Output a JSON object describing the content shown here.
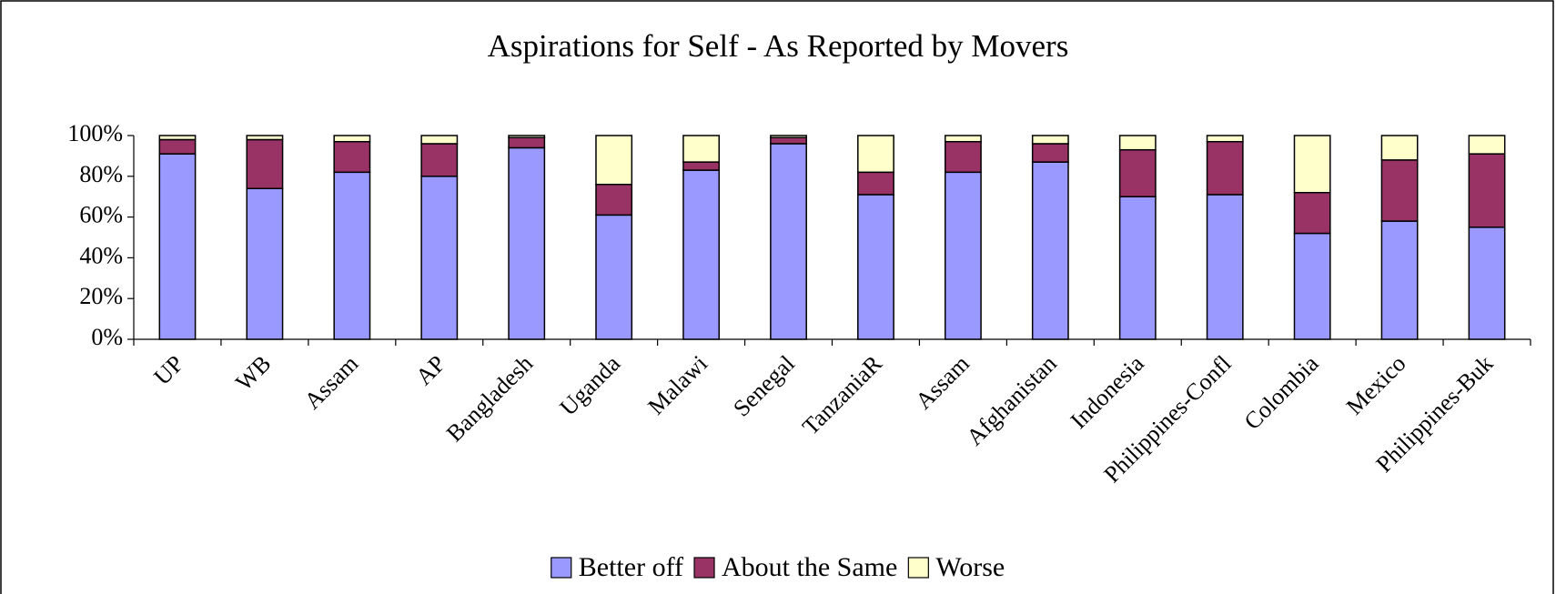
{
  "chart_data": {
    "type": "stacked_bar",
    "title": "Aspirations for Self - As Reported by Movers",
    "categories": [
      "UP",
      "WB",
      "Assam",
      "AP",
      "Bangladesh",
      "Uganda",
      "Malawi",
      "Senegal",
      "TanzaniaR",
      "Assam",
      "Afghanistan",
      "Indonesia",
      "Philippines-Confl",
      "Colombia",
      "Mexico",
      "Philippines-Buk"
    ],
    "series": [
      {
        "name": "Better off",
        "color": "#9999ff",
        "values": [
          91,
          74,
          82,
          80,
          94,
          61,
          83,
          96,
          71,
          82,
          87,
          70,
          71,
          52,
          58,
          55
        ]
      },
      {
        "name": "About the Same",
        "color": "#993366",
        "values": [
          7,
          24,
          15,
          16,
          5,
          15,
          4,
          3,
          11,
          15,
          9,
          23,
          26,
          20,
          30,
          36
        ]
      },
      {
        "name": "Worse",
        "color": "#ffffcc",
        "values": [
          2,
          2,
          3,
          4,
          1,
          24,
          13,
          1,
          18,
          3,
          4,
          7,
          3,
          28,
          12,
          9
        ]
      }
    ],
    "ylim": [
      0,
      100
    ],
    "yticks": [
      {
        "value": 0,
        "label": "0%"
      },
      {
        "value": 20,
        "label": "20%"
      },
      {
        "value": 40,
        "label": "40%"
      },
      {
        "value": 60,
        "label": "60%"
      },
      {
        "value": 80,
        "label": "80%"
      },
      {
        "value": 100,
        "label": "100%"
      }
    ],
    "legend": "bottom"
  }
}
